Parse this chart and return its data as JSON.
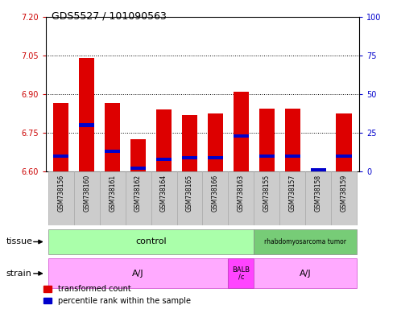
{
  "title": "GDS5527 / 101090563",
  "samples": [
    "GSM738156",
    "GSM738160",
    "GSM738161",
    "GSM738162",
    "GSM738164",
    "GSM738165",
    "GSM738166",
    "GSM738163",
    "GSM738155",
    "GSM738157",
    "GSM738158",
    "GSM738159"
  ],
  "transformed_count": [
    6.865,
    7.04,
    6.865,
    6.725,
    6.84,
    6.82,
    6.825,
    6.91,
    6.845,
    6.845,
    6.6,
    6.825
  ],
  "percentile_rank": [
    10,
    30,
    13,
    2,
    8,
    9,
    9,
    23,
    10,
    10,
    1,
    10
  ],
  "ylim_left": [
    6.6,
    7.2
  ],
  "ylim_right": [
    0,
    100
  ],
  "yticks_left": [
    6.6,
    6.75,
    6.9,
    7.05,
    7.2
  ],
  "yticks_right": [
    0,
    25,
    50,
    75,
    100
  ],
  "hlines": [
    6.75,
    6.9,
    7.05
  ],
  "bar_color_red": "#dd0000",
  "bar_color_blue": "#0000cc",
  "bar_width": 0.6,
  "control_color": "#aaffaa",
  "rhab_color": "#77cc77",
  "strain_aj_color": "#ffaaff",
  "strain_balb_color": "#ff44ff",
  "legend_red": "transformed count",
  "legend_blue": "percentile rank within the sample",
  "tick_label_color_left": "#cc0000",
  "tick_label_color_right": "#0000cc",
  "col_bg_color": "#cccccc",
  "col_border_color": "#aaaaaa"
}
